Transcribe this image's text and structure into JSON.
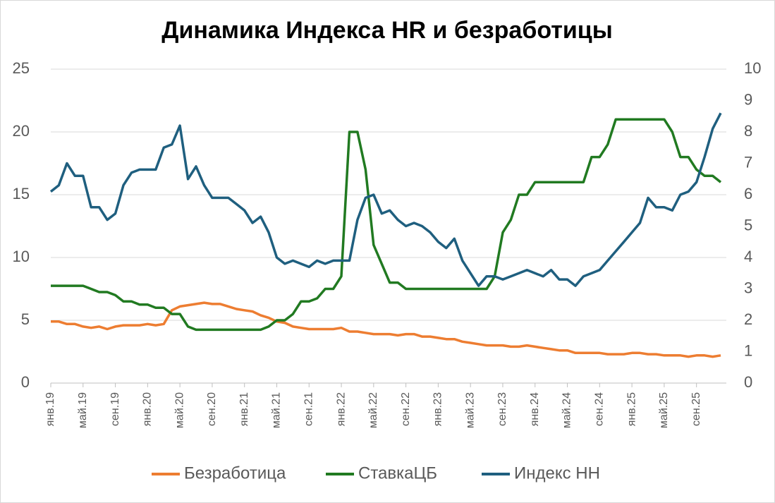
{
  "chart_data": {
    "type": "line",
    "title": "Динамика Индекса HR и безработицы",
    "categories": [
      "янв.19",
      null,
      null,
      null,
      "май.19",
      null,
      null,
      null,
      "сен.19",
      null,
      null,
      null,
      "янв.20",
      null,
      null,
      null,
      "май.20",
      null,
      null,
      null,
      "сен.20",
      null,
      null,
      null,
      "янв.21",
      null,
      null,
      null,
      "май.21",
      null,
      null,
      null,
      "сен.21",
      null,
      null,
      null,
      "янв.22",
      null,
      null,
      null,
      "май.22",
      null,
      null,
      null,
      "сен.22",
      null,
      null,
      null,
      "янв.23",
      null,
      null,
      null,
      "май.23",
      null,
      null,
      null,
      "сен.23",
      null,
      null,
      null,
      "янв.24",
      null,
      null,
      null,
      "май.24",
      null,
      null,
      null,
      "сен.24",
      null,
      null,
      null,
      "янв.25",
      null,
      null,
      null,
      "май.25",
      null,
      null,
      null,
      "сен.25",
      null,
      null,
      null
    ],
    "series": [
      {
        "name": "Безработица",
        "color": "#ed7d31",
        "values": [
          4.9,
          4.9,
          4.7,
          4.7,
          4.5,
          4.4,
          4.5,
          4.3,
          4.5,
          4.6,
          4.6,
          4.6,
          4.7,
          4.6,
          4.7,
          5.8,
          6.1,
          6.2,
          6.3,
          6.4,
          6.3,
          6.3,
          6.1,
          5.9,
          5.8,
          5.7,
          5.4,
          5.2,
          4.9,
          4.8,
          4.5,
          4.4,
          4.3,
          4.3,
          4.3,
          4.3,
          4.4,
          4.1,
          4.1,
          4.0,
          3.9,
          3.9,
          3.9,
          3.8,
          3.9,
          3.9,
          3.7,
          3.7,
          3.6,
          3.5,
          3.5,
          3.3,
          3.2,
          3.1,
          3.0,
          3.0,
          3.0,
          2.9,
          2.9,
          3.0,
          2.9,
          2.8,
          2.7,
          2.6,
          2.6,
          2.4,
          2.4,
          2.4,
          2.4,
          2.3,
          2.3,
          2.3,
          2.4,
          2.4,
          2.3,
          2.3,
          2.2,
          2.2,
          2.2,
          2.1,
          2.2,
          2.2,
          2.1,
          2.2
        ]
      },
      {
        "name": "СтавкаЦБ",
        "color": "#217a21",
        "values": [
          7.75,
          7.75,
          7.75,
          7.75,
          7.75,
          7.5,
          7.25,
          7.25,
          7.0,
          6.5,
          6.5,
          6.25,
          6.25,
          6.0,
          6.0,
          5.5,
          5.5,
          4.5,
          4.25,
          4.25,
          4.25,
          4.25,
          4.25,
          4.25,
          4.25,
          4.25,
          4.25,
          4.5,
          5.0,
          5.0,
          5.5,
          6.5,
          6.5,
          6.75,
          7.5,
          7.5,
          8.5,
          20,
          20,
          17,
          11,
          9.5,
          8,
          8,
          7.5,
          7.5,
          7.5,
          7.5,
          7.5,
          7.5,
          7.5,
          7.5,
          7.5,
          7.5,
          7.5,
          8.5,
          12,
          13,
          15,
          15,
          16,
          16,
          16,
          16,
          16,
          16,
          16,
          18,
          18,
          19,
          21,
          21,
          21,
          21,
          21,
          21,
          21,
          20,
          18,
          18,
          17,
          16.5,
          16.5,
          16
        ]
      },
      {
        "name": "Индекс НН",
        "color": "#1f5f7f",
        "axis": "y2",
        "values": [
          6.1,
          6.3,
          7.0,
          6.6,
          6.6,
          5.6,
          5.6,
          5.2,
          5.4,
          6.3,
          6.7,
          6.8,
          6.8,
          6.8,
          7.5,
          7.6,
          8.2,
          6.5,
          6.9,
          6.3,
          5.9,
          5.9,
          5.9,
          5.7,
          5.5,
          5.1,
          5.3,
          4.8,
          4.0,
          3.8,
          3.9,
          3.8,
          3.7,
          3.9,
          3.8,
          3.9,
          3.9,
          3.9,
          5.2,
          5.9,
          6.0,
          5.4,
          5.5,
          5.2,
          5.0,
          5.1,
          5.0,
          4.8,
          4.5,
          4.3,
          4.6,
          3.9,
          3.5,
          3.1,
          3.4,
          3.4,
          3.3,
          3.4,
          3.5,
          3.6,
          3.5,
          3.4,
          3.6,
          3.3,
          3.3,
          3.1,
          3.4,
          3.5,
          3.6,
          3.9,
          4.2,
          4.5,
          4.8,
          5.1,
          5.9,
          5.6,
          5.6,
          5.5,
          6.0,
          6.1,
          6.4,
          7.2,
          8.1,
          8.6
        ]
      }
    ],
    "ylim": [
      0,
      25
    ],
    "yticks": [
      0,
      5,
      10,
      15,
      20,
      25
    ],
    "y2lim": [
      0,
      10
    ],
    "y2ticks": [
      0,
      1,
      2,
      3,
      4,
      5,
      6,
      7,
      8,
      9,
      10
    ],
    "grid": true,
    "legend": "bottom"
  }
}
